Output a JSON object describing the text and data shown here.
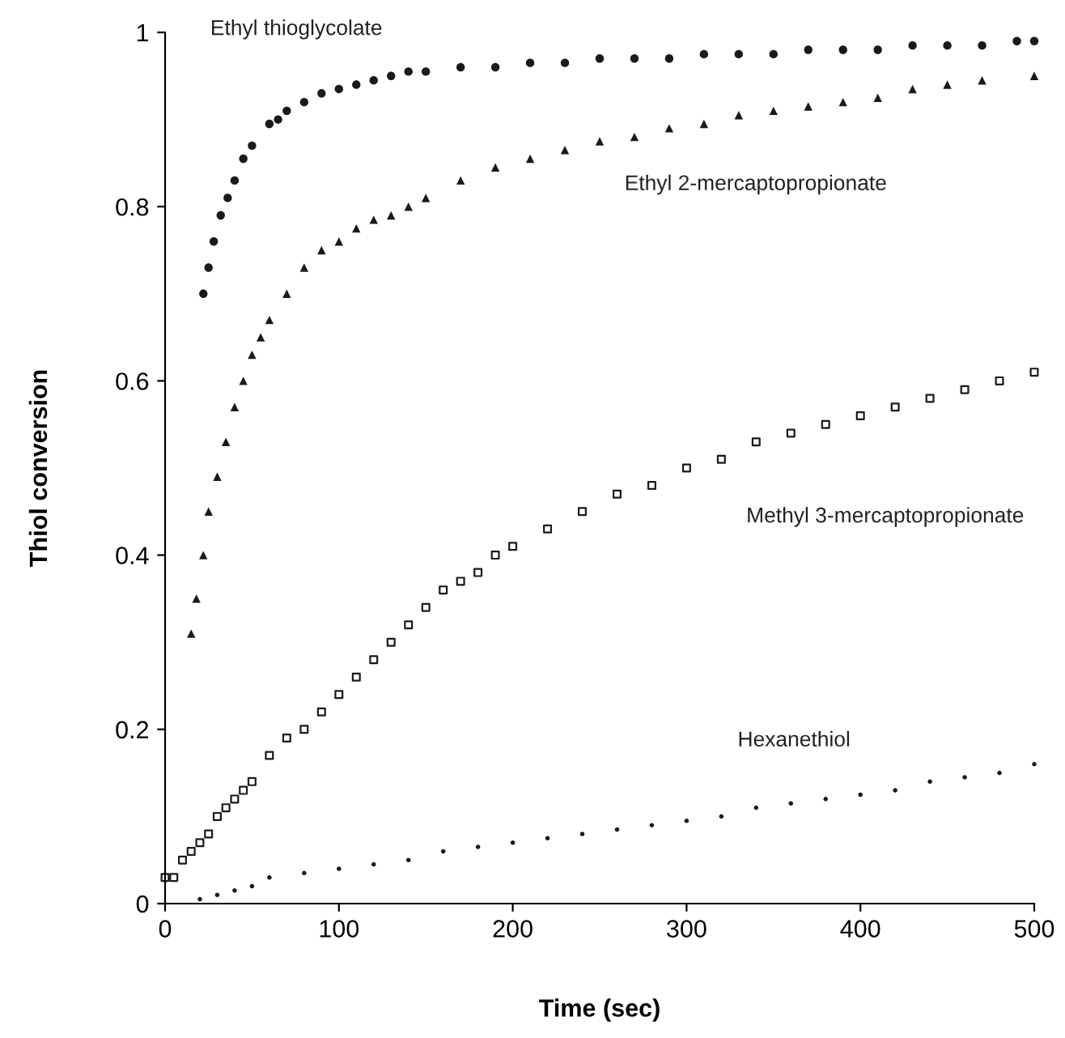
{
  "chart_data": {
    "type": "scatter",
    "xlabel": "Time (sec)",
    "ylabel": "Thiol conversion",
    "xlim": [
      0,
      500
    ],
    "ylim": [
      0,
      1
    ],
    "xticks": [
      0,
      100,
      200,
      300,
      400,
      500
    ],
    "yticks": [
      0,
      0.2,
      0.4,
      0.6,
      0.8,
      1
    ],
    "grid": false,
    "legend": false,
    "series": [
      {
        "name": "Ethyl thioglycolate",
        "color": "#1a1a1a",
        "marker": "circle",
        "x": [
          22,
          25,
          28,
          32,
          36,
          40,
          45,
          50,
          60,
          65,
          70,
          80,
          90,
          100,
          110,
          120,
          130,
          140,
          150,
          170,
          190,
          210,
          230,
          250,
          270,
          290,
          310,
          330,
          350,
          370,
          390,
          410,
          430,
          450,
          470,
          490,
          500
        ],
        "values": [
          0.7,
          0.73,
          0.76,
          0.79,
          0.81,
          0.83,
          0.855,
          0.87,
          0.895,
          0.9,
          0.91,
          0.92,
          0.93,
          0.935,
          0.94,
          0.945,
          0.95,
          0.955,
          0.955,
          0.96,
          0.96,
          0.965,
          0.965,
          0.97,
          0.97,
          0.97,
          0.975,
          0.975,
          0.975,
          0.98,
          0.98,
          0.98,
          0.985,
          0.985,
          0.985,
          0.99,
          0.99
        ]
      },
      {
        "name": "Ethyl 2-mercaptopropionate",
        "color": "#1a1a1a",
        "marker": "triangle",
        "x": [
          15,
          18,
          22,
          25,
          30,
          35,
          40,
          45,
          50,
          55,
          60,
          70,
          80,
          90,
          100,
          110,
          120,
          130,
          140,
          150,
          170,
          190,
          210,
          230,
          250,
          270,
          290,
          310,
          330,
          350,
          370,
          390,
          410,
          430,
          450,
          470,
          500
        ],
        "values": [
          0.31,
          0.35,
          0.4,
          0.45,
          0.49,
          0.53,
          0.57,
          0.6,
          0.63,
          0.65,
          0.67,
          0.7,
          0.73,
          0.75,
          0.76,
          0.775,
          0.785,
          0.79,
          0.8,
          0.81,
          0.83,
          0.845,
          0.855,
          0.865,
          0.875,
          0.88,
          0.89,
          0.895,
          0.905,
          0.91,
          0.915,
          0.92,
          0.925,
          0.935,
          0.94,
          0.945,
          0.95
        ]
      },
      {
        "name": "Methyl 3-mercaptopropionate",
        "color": "#1a1a1a",
        "marker": "square",
        "x": [
          0,
          5,
          10,
          15,
          20,
          25,
          30,
          35,
          40,
          45,
          50,
          60,
          70,
          80,
          90,
          100,
          110,
          120,
          130,
          140,
          150,
          160,
          170,
          180,
          190,
          200,
          220,
          240,
          260,
          280,
          300,
          320,
          340,
          360,
          380,
          400,
          420,
          440,
          460,
          480,
          500
        ],
        "values": [
          0.03,
          0.03,
          0.05,
          0.06,
          0.07,
          0.08,
          0.1,
          0.11,
          0.12,
          0.13,
          0.14,
          0.17,
          0.19,
          0.2,
          0.22,
          0.24,
          0.26,
          0.28,
          0.3,
          0.32,
          0.34,
          0.36,
          0.37,
          0.38,
          0.4,
          0.41,
          0.43,
          0.45,
          0.47,
          0.48,
          0.5,
          0.51,
          0.53,
          0.54,
          0.55,
          0.56,
          0.57,
          0.58,
          0.59,
          0.6,
          0.61
        ]
      },
      {
        "name": "Hexanethiol",
        "color": "#1a1a1a",
        "marker": "circle",
        "x": [
          20,
          30,
          40,
          50,
          60,
          80,
          100,
          120,
          140,
          160,
          180,
          200,
          220,
          240,
          260,
          280,
          300,
          320,
          340,
          360,
          380,
          400,
          420,
          440,
          460,
          480,
          500
        ],
        "values": [
          0.005,
          0.01,
          0.015,
          0.02,
          0.03,
          0.035,
          0.04,
          0.045,
          0.05,
          0.06,
          0.065,
          0.07,
          0.075,
          0.08,
          0.085,
          0.09,
          0.095,
          0.1,
          0.11,
          0.115,
          0.12,
          0.125,
          0.13,
          0.14,
          0.145,
          0.15,
          0.16
        ]
      }
    ]
  }
}
